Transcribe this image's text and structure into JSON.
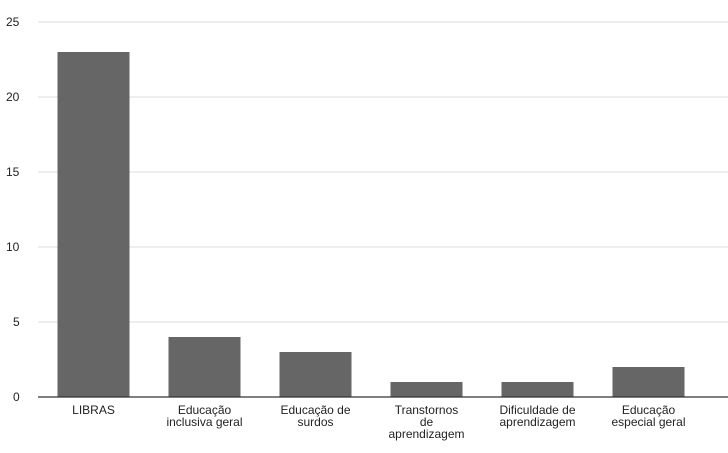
{
  "chart_data": {
    "type": "bar",
    "title": "",
    "xlabel": "",
    "ylabel": "",
    "categories": [
      "LIBRAS",
      "Educação inclusiva geral",
      "Educação de surdos",
      "Transtornos de aprendizagem",
      "Dificuldade de aprendizagem",
      "Educação especial geral"
    ],
    "category_lines": [
      [
        "LIBRAS"
      ],
      [
        "Educação",
        "inclusiva geral"
      ],
      [
        "Educação de",
        "surdos"
      ],
      [
        "Transtornos",
        "de",
        "aprendizagem"
      ],
      [
        "Dificuldade de",
        "aprendizagem"
      ],
      [
        "Educação",
        "especial geral"
      ]
    ],
    "values": [
      23,
      4,
      3,
      1,
      1,
      2
    ],
    "ylim": [
      0,
      25
    ],
    "yticks": [
      0,
      5,
      10,
      15,
      20,
      25
    ],
    "grid": true,
    "legend": "none",
    "bar_color": "#666666",
    "grid_color": "#dddddd",
    "axis_color": "#333333"
  }
}
